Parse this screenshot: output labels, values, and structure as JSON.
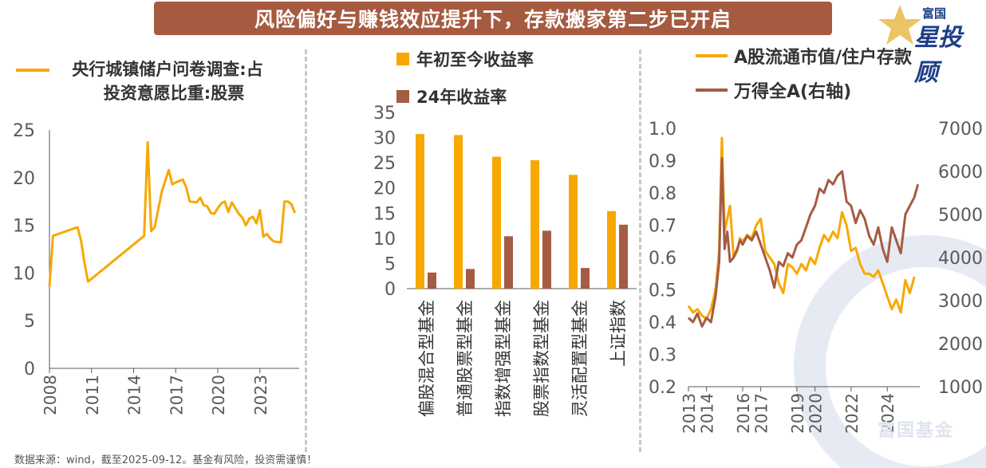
{
  "title": "风险偏好与赚钱效应提升下，存款搬家第二步已开启",
  "logo": {
    "top": "富国",
    "main": "星投顾"
  },
  "watermark": "富国基金",
  "footer": "数据来源：wind，截至2025-09-12。基金有风险，投资需谨慎！",
  "colors": {
    "gold": "#f7a800",
    "brown": "#a45c44",
    "title_bg": "#a65a3f",
    "axis": "#595959"
  },
  "chart_data": [
    {
      "type": "line",
      "legend": [
        "央行城镇储户问卷调查:占",
        "投资意愿比重:股票"
      ],
      "xlim": [
        2008,
        2025.8
      ],
      "xticks": [
        "2008",
        "2011",
        "2014",
        "2017",
        "2020",
        "2023"
      ],
      "ylim": [
        0,
        25
      ],
      "yticks": [
        "0",
        "5",
        "10",
        "15",
        "20",
        "25"
      ],
      "series": [
        {
          "color": "#f7a800",
          "x": [
            2008.0,
            2008.25,
            2010.0,
            2010.25,
            2010.5,
            2010.75,
            2014.75,
            2015.0,
            2015.25,
            2015.5,
            2016.0,
            2016.5,
            2016.75,
            2017.0,
            2017.5,
            2017.75,
            2018.0,
            2018.5,
            2018.75,
            2019.0,
            2019.25,
            2019.5,
            2019.75,
            2020.0,
            2020.25,
            2020.5,
            2020.75,
            2021.0,
            2021.25,
            2021.5,
            2021.75,
            2022.0,
            2022.25,
            2022.5,
            2022.75,
            2023.0,
            2023.25,
            2023.5,
            2023.75,
            2024.0,
            2024.5,
            2024.75,
            2025.0,
            2025.25,
            2025.5
          ],
          "y": [
            8.6,
            13.9,
            14.8,
            13.4,
            11.0,
            9.1,
            13.9,
            23.7,
            14.4,
            14.8,
            18.5,
            20.8,
            19.3,
            19.5,
            19.8,
            19.0,
            17.5,
            17.4,
            17.9,
            17.1,
            17.0,
            16.3,
            16.2,
            16.8,
            17.3,
            17.5,
            16.4,
            17.4,
            16.8,
            16.2,
            15.8,
            15.0,
            15.7,
            15.9,
            15.2,
            16.6,
            13.8,
            14.1,
            13.6,
            13.3,
            13.2,
            17.5,
            17.5,
            17.2,
            16.3
          ]
        }
      ]
    },
    {
      "type": "bar",
      "categories": [
        "偏股混合型基金",
        "普通股票型基金",
        "指数增强型基金",
        "股票指数型基金",
        "灵活配置型基金",
        "上证指数"
      ],
      "ylim": [
        0,
        35
      ],
      "yticks": [
        "0",
        "5",
        "10",
        "15",
        "20",
        "25",
        "30",
        "35"
      ],
      "series": [
        {
          "name": "年初至今收益率",
          "color": "#f7a800",
          "values": [
            30.7,
            30.5,
            26.2,
            25.5,
            22.6,
            15.4
          ]
        },
        {
          "name": "24年收益率",
          "color": "#a45c44",
          "values": [
            3.2,
            3.9,
            10.4,
            11.5,
            4.1,
            12.7
          ]
        }
      ]
    },
    {
      "type": "line",
      "xlim": [
        2013,
        2025.8
      ],
      "xticks": [
        "2013",
        "2014",
        "2016",
        "2017",
        "2019",
        "2020",
        "2022",
        "2024"
      ],
      "ylim_left": [
        0.2,
        1.0
      ],
      "yticks_left": [
        "0.2",
        "0.3",
        "0.4",
        "0.5",
        "0.6",
        "0.7",
        "0.8",
        "0.9",
        "1.0"
      ],
      "ylim_right": [
        1000,
        7000
      ],
      "yticks_right": [
        "1000",
        "2000",
        "3000",
        "4000",
        "5000",
        "6000",
        "7000"
      ],
      "series": [
        {
          "name": "A股流通市值/住户存款",
          "color": "#f7a800",
          "axis": "left",
          "x": [
            2013.0,
            2013.25,
            2013.5,
            2013.75,
            2014.0,
            2014.25,
            2014.5,
            2014.7,
            2014.85,
            2015.0,
            2015.15,
            2015.3,
            2015.5,
            2015.7,
            2015.85,
            2016.0,
            2016.25,
            2016.5,
            2016.75,
            2017.0,
            2017.25,
            2017.5,
            2017.75,
            2018.0,
            2018.25,
            2018.5,
            2018.75,
            2019.0,
            2019.25,
            2019.5,
            2019.75,
            2020.0,
            2020.25,
            2020.5,
            2020.75,
            2021.0,
            2021.25,
            2021.5,
            2021.75,
            2022.0,
            2022.25,
            2022.5,
            2022.75,
            2023.0,
            2023.25,
            2023.5,
            2023.75,
            2024.0,
            2024.25,
            2024.5,
            2024.75,
            2025.0,
            2025.25,
            2025.5
          ],
          "y": [
            0.45,
            0.43,
            0.44,
            0.42,
            0.41,
            0.44,
            0.5,
            0.62,
            0.97,
            0.68,
            0.72,
            0.76,
            0.6,
            0.62,
            0.66,
            0.65,
            0.67,
            0.66,
            0.7,
            0.72,
            0.62,
            0.6,
            0.58,
            0.52,
            0.49,
            0.58,
            0.57,
            0.55,
            0.58,
            0.56,
            0.6,
            0.58,
            0.63,
            0.67,
            0.65,
            0.68,
            0.66,
            0.74,
            0.7,
            0.62,
            0.63,
            0.58,
            0.55,
            0.55,
            0.54,
            0.56,
            0.52,
            0.48,
            0.44,
            0.47,
            0.43,
            0.53,
            0.49,
            0.54
          ]
        },
        {
          "name": "万得全A(右轴)",
          "color": "#a45c44",
          "axis": "right",
          "x": [
            2013.0,
            2013.25,
            2013.5,
            2013.75,
            2014.0,
            2014.25,
            2014.5,
            2014.7,
            2014.85,
            2015.0,
            2015.15,
            2015.3,
            2015.5,
            2015.7,
            2015.85,
            2016.0,
            2016.25,
            2016.5,
            2016.75,
            2017.0,
            2017.25,
            2017.5,
            2017.75,
            2018.0,
            2018.25,
            2018.5,
            2018.75,
            2019.0,
            2019.25,
            2019.5,
            2019.75,
            2020.0,
            2020.25,
            2020.5,
            2020.75,
            2021.0,
            2021.25,
            2021.5,
            2021.75,
            2022.0,
            2022.25,
            2022.5,
            2022.75,
            2023.0,
            2023.25,
            2023.5,
            2023.75,
            2024.0,
            2024.25,
            2024.5,
            2024.75,
            2025.0,
            2025.25,
            2025.5,
            2025.7
          ],
          "y": [
            2600,
            2500,
            2700,
            2400,
            2600,
            2500,
            3100,
            3900,
            6300,
            4200,
            4600,
            3900,
            4000,
            4200,
            4400,
            4300,
            4500,
            4400,
            4600,
            4300,
            4000,
            3700,
            3300,
            3900,
            3800,
            4100,
            4000,
            4300,
            4400,
            4700,
            5000,
            5200,
            5600,
            5500,
            5800,
            5700,
            5900,
            6000,
            5300,
            5200,
            4800,
            5100,
            4900,
            4500,
            4300,
            4700,
            4200,
            3900,
            4700,
            4400,
            4100,
            5000,
            5200,
            5400,
            5700
          ]
        }
      ]
    }
  ]
}
